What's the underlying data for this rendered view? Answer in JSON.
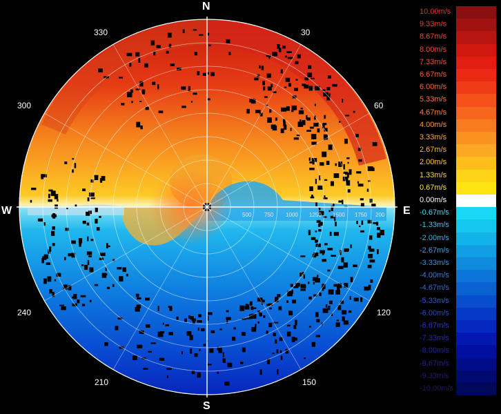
{
  "compass": {
    "north": "N",
    "south": "S",
    "east": "E",
    "west": "W"
  },
  "bearings": [
    "30",
    "60",
    "120",
    "150",
    "210",
    "240",
    "300",
    "330"
  ],
  "range_labels": [
    "500",
    "750",
    "1000",
    "1250",
    "1500",
    "1750",
    "200"
  ],
  "legend": {
    "unit": "m/s",
    "items": [
      {
        "label": "10.00m/s",
        "color": "#8a0f10",
        "text": "#d23a2a"
      },
      {
        "label": "9.33m/s",
        "color": "#a11211",
        "text": "#d94030"
      },
      {
        "label": "8.67m/s",
        "color": "#b81510",
        "text": "#e04a33"
      },
      {
        "label": "8.00m/s",
        "color": "#d11810",
        "text": "#ea4d35"
      },
      {
        "label": "7.33m/s",
        "color": "#e21e12",
        "text": "#f05035"
      },
      {
        "label": "6.67m/s",
        "color": "#ea2a14",
        "text": "#f25a38"
      },
      {
        "label": "6.00m/s",
        "color": "#f03c16",
        "text": "#f4663a"
      },
      {
        "label": "5.33m/s",
        "color": "#f4501a",
        "text": "#f6743c"
      },
      {
        "label": "4.67m/s",
        "color": "#f6661c",
        "text": "#f7843e"
      },
      {
        "label": "4.00m/s",
        "color": "#f87c1e",
        "text": "#f8963e"
      },
      {
        "label": "3.33m/s",
        "color": "#fa9220",
        "text": "#f9a83e"
      },
      {
        "label": "2.67m/s",
        "color": "#fca822",
        "text": "#fbba3e"
      },
      {
        "label": "2.00m/s",
        "color": "#fdbe1c",
        "text": "#fcc83e"
      },
      {
        "label": "1.33m/s",
        "color": "#fed418",
        "text": "#fdd63e"
      },
      {
        "label": "0.67m/s",
        "color": "#ffe414",
        "text": "#fde43e"
      },
      {
        "label": "0.00m/s",
        "color": "#ffffff",
        "text": "#ffffff"
      },
      {
        "label": "-0.67m/s",
        "color": "#18d8f4",
        "text": "#3fd8f4"
      },
      {
        "label": "-1.33m/s",
        "color": "#14c6f0",
        "text": "#3cc6f0"
      },
      {
        "label": "-2.00m/s",
        "color": "#12b2ea",
        "text": "#3ab4ea"
      },
      {
        "label": "-2.67m/s",
        "color": "#109ee4",
        "text": "#38a2e4"
      },
      {
        "label": "-3.33m/s",
        "color": "#0e8ade",
        "text": "#3690de"
      },
      {
        "label": "-4.00m/s",
        "color": "#0c76d8",
        "text": "#347ed8"
      },
      {
        "label": "-4.67m/s",
        "color": "#0a62d2",
        "text": "#326cd2"
      },
      {
        "label": "-5.33m/s",
        "color": "#084ecc",
        "text": "#305acc"
      },
      {
        "label": "-6.00m/s",
        "color": "#063ac6",
        "text": "#2e48c6"
      },
      {
        "label": "-6.67m/s",
        "color": "#0428c0",
        "text": "#2c38c0"
      },
      {
        "label": "-7.33m/s",
        "color": "#0218b0",
        "text": "#2a2ab0"
      },
      {
        "label": "-8.00m/s",
        "color": "#0110a0",
        "text": "#28259a"
      },
      {
        "label": "-8.67m/s",
        "color": "#010c88",
        "text": "#262088"
      },
      {
        "label": "-9.33m/s",
        "color": "#000a70",
        "text": "#241c70"
      },
      {
        "label": "-10.00m/s",
        "color": "#00085a",
        "text": "#22185a"
      }
    ]
  }
}
